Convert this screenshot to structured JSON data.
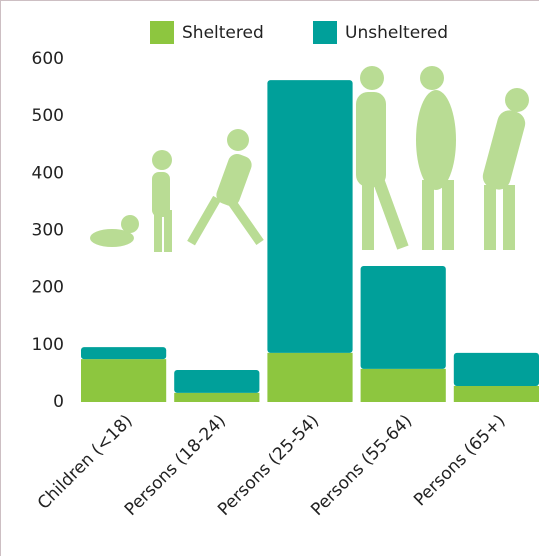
{
  "chart_data": {
    "type": "stacked-bar",
    "categories": [
      "Children (<18)",
      "Persons (18-24)",
      "Persons (25-54)",
      "Persons (55-64)",
      "Persons (65+)"
    ],
    "series": [
      {
        "name": "Sheltered",
        "color": "#8dc63f",
        "values": [
          75,
          16,
          86,
          58,
          28
        ]
      },
      {
        "name": "Unsheltered",
        "color": "#00a09a",
        "values": [
          21,
          40,
          477,
          180,
          58
        ]
      }
    ],
    "ylim": [
      0,
      600
    ],
    "yticks": [
      0,
      100,
      200,
      300,
      400,
      500,
      600
    ]
  }
}
